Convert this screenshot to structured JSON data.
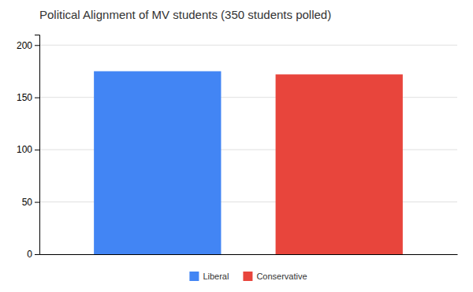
{
  "chart_data": {
    "type": "bar",
    "title": "Political Alignment of MV students (350 students polled)",
    "categories": [
      "Liberal",
      "Conservative"
    ],
    "values": [
      175,
      172
    ],
    "colors": [
      "#4285F4",
      "#E8453C"
    ],
    "ylim": [
      0,
      210
    ],
    "yticks": [
      0,
      50,
      100,
      150,
      200
    ],
    "grid": true,
    "legend": "bottom",
    "tick_labels": "y"
  }
}
